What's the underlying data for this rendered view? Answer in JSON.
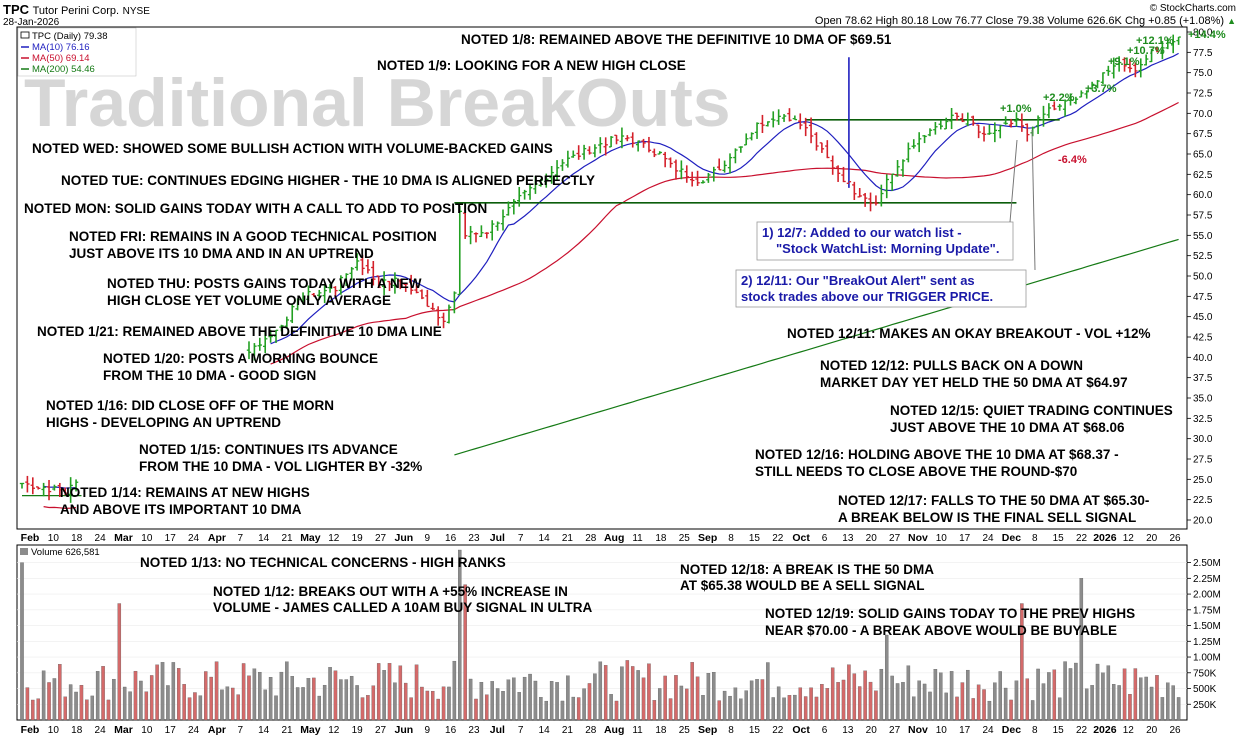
{
  "header": {
    "ticker": "TPC",
    "company": "Tutor Perini Corp.",
    "exchange": "NYSE",
    "date": "28-Jan-2026",
    "watermark": "© StockCharts.com",
    "ohlc_line": "Open 78.62  High 80.18  Low 76.77  Close 79.38  Volume 626.6K  Chg +0.85 (+1.08%)",
    "up_arrow": "▲"
  },
  "legend": {
    "price": "TPC (Daily) 79.38",
    "ma10": "MA(10) 76.16",
    "ma50": "MA(50) 69.14",
    "ma200": "MA(200) 54.46",
    "volume": "Volume 626,581"
  },
  "colors": {
    "up_bar": "#22a022",
    "down_bar": "#d4202a",
    "ma10": "#1f1fbf",
    "ma50": "#c8102e",
    "ma200": "#157a15",
    "vol_up": "#8c8c8c",
    "vol_down": "#d46a6a",
    "annotation": "#1a1aa8"
  },
  "big_title": "Traditional BreakOuts",
  "notes": [
    "NOTED 1/8: REMAINED ABOVE THE DEFINITIVE 10 DMA OF $69.51",
    "NOTED 1/9: LOOKING FOR A NEW HIGH CLOSE",
    "NOTED WED: SHOWED SOME BULLISH ACTION WITH VOLUME-BACKED GAINS",
    "NOTED TUE: CONTINUES EDGING HIGHER - THE 10 DMA IS ALIGNED PERFECTLY",
    "NOTED MON: SOLID GAINS TODAY WITH A CALL TO ADD TO POSITION",
    "NOTED FRI: REMAINS IN A GOOD TECHNICAL POSITION",
    "JUST ABOVE ITS 10 DMA AND IN AN UPTREND",
    "NOTED THU: POSTS GAINS TODAY WITH A NEW",
    "HIGH CLOSE YET VOLUME ONLY AVERAGE",
    "NOTED 1/21: REMAINED ABOVE THE DEFINITIVE 10 DMA LINE",
    "NOTED 1/20: POSTS A MORNING BOUNCE",
    "FROM THE 10 DMA - GOOD SIGN",
    "NOTED 1/16: DID CLOSE OFF OF THE MORN",
    "HIGHS - DEVELOPING AN UPTREND",
    "NOTED 1/15: CONTINUES ITS ADVANCE",
    "FROM THE 10 DMA - VOL LIGHTER BY -32%",
    "NOTED 1/14: REMAINS AT NEW HIGHS",
    "AND ABOVE ITS IMPORTANT 10 DMA",
    "NOTED 12/11: MAKES AN OKAY BREAKOUT - VOL +12%",
    "NOTED 12/12: PULLS BACK ON A DOWN",
    "MARKET DAY YET HELD THE 50 DMA AT $64.97",
    "NOTED 12/15: QUIET TRADING CONTINUES",
    "JUST ABOVE THE 10 DMA AT $68.06",
    "NOTED 12/16: HOLDING ABOVE THE 10 DMA AT $68.37 -",
    "STILL NEEDS TO CLOSE ABOVE THE ROUND-$70",
    "NOTED 12/17: FALLS TO THE 50 DMA AT  $65.30-",
    "A BREAK BELOW IS THE FINAL SELL SIGNAL",
    "NOTED 1/13: NO TECHNICAL CONCERNS - HIGH RANKS",
    "NOTED 1/12: BREAKS OUT WITH A +55% INCREASE IN",
    "VOLUME - JAMES CALLED A 10AM BUY SIGNAL IN ULTRA",
    "NOTED 12/18: A BREAK IS THE 50 DMA",
    "AT $65.38 WOULD BE A SELL SIGNAL",
    "NOTED 12/19: SOLID GAINS TODAY TO THE PREV HIGHS",
    "NEAR $70.00 - A BREAK ABOVE WOULD BE BUYABLE"
  ],
  "annotations": [
    "1) 12/7: Added to our watch list -",
    "\"Stock WatchList: Morning Update\".",
    "2) 12/11: Our \"BreakOut Alert\" sent as",
    "stock trades above our TRIGGER PRICE."
  ],
  "pct_labels": {
    "green": [
      "+1.0%",
      "+2.2%",
      "+3.7%",
      "+9.1%",
      "+10.7%",
      "+12.1%",
      "+14.4%"
    ],
    "red": [
      "-6.4%"
    ]
  },
  "chart_data": {
    "type": "ohlc",
    "price_axis": {
      "range": [
        16.5,
        81
      ],
      "ticks": [
        "80.0",
        "77.5",
        "75.0",
        "72.5",
        "70.0",
        "67.5",
        "65.0",
        "62.5",
        "60.0",
        "57.5",
        "55.0",
        "52.5",
        "50.0",
        "47.5",
        "45.0",
        "42.5",
        "40.0",
        "37.5",
        "35.0",
        "32.5",
        "30.0",
        "27.5",
        "25.0",
        "22.5",
        "20.0"
      ]
    },
    "volume_axis": {
      "range": [
        0,
        2700000
      ],
      "ticks": [
        "2.50M",
        "2.25M",
        "2.00M",
        "1.75M",
        "1.50M",
        "1.25M",
        "1.00M",
        "750K",
        "500K",
        "250K"
      ]
    },
    "x_labels": [
      {
        "t": "Feb",
        "bold": true
      },
      {
        "t": "10"
      },
      {
        "t": "18"
      },
      {
        "t": "24"
      },
      {
        "t": "Mar",
        "bold": true
      },
      {
        "t": "10"
      },
      {
        "t": "17"
      },
      {
        "t": "24"
      },
      {
        "t": "Apr",
        "bold": true
      },
      {
        "t": "7"
      },
      {
        "t": "14"
      },
      {
        "t": "21"
      },
      {
        "t": "May",
        "bold": true
      },
      {
        "t": "12"
      },
      {
        "t": "19"
      },
      {
        "t": "27"
      },
      {
        "t": "Jun",
        "bold": true
      },
      {
        "t": "9"
      },
      {
        "t": "16"
      },
      {
        "t": "23"
      },
      {
        "t": "Jul",
        "bold": true
      },
      {
        "t": "7"
      },
      {
        "t": "14"
      },
      {
        "t": "21"
      },
      {
        "t": "28"
      },
      {
        "t": "Aug",
        "bold": true
      },
      {
        "t": "11"
      },
      {
        "t": "18"
      },
      {
        "t": "25"
      },
      {
        "t": "Sep",
        "bold": true
      },
      {
        "t": "8"
      },
      {
        "t": "15"
      },
      {
        "t": "22"
      },
      {
        "t": "Oct",
        "bold": true
      },
      {
        "t": "6"
      },
      {
        "t": "13"
      },
      {
        "t": "20"
      },
      {
        "t": "27"
      },
      {
        "t": "Nov",
        "bold": true
      },
      {
        "t": "10"
      },
      {
        "t": "17"
      },
      {
        "t": "24"
      },
      {
        "t": "Dec",
        "bold": true
      },
      {
        "t": "8"
      },
      {
        "t": "15"
      },
      {
        "t": "22"
      },
      {
        "t": "2026",
        "bold": true
      },
      {
        "t": "12"
      },
      {
        "t": "20"
      },
      {
        "t": "26"
      }
    ],
    "levels": {
      "resistance": 69.2,
      "support": 59.0
    },
    "price_path": [
      [
        0,
        24.5
      ],
      [
        4,
        24.0
      ],
      [
        8,
        23.5
      ],
      [
        10,
        24.5
      ],
      [
        42,
        41.0
      ],
      [
        46,
        42.5
      ],
      [
        52,
        47.5
      ],
      [
        58,
        48.5
      ],
      [
        62,
        52.0
      ],
      [
        66,
        49.0
      ],
      [
        70,
        49.5
      ],
      [
        76,
        46.0
      ],
      [
        78,
        44.5
      ],
      [
        80,
        47.5
      ],
      [
        81,
        58.0
      ],
      [
        82,
        55.0
      ],
      [
        86,
        55.5
      ],
      [
        92,
        59.5
      ],
      [
        100,
        64.0
      ],
      [
        108,
        66.5
      ],
      [
        112,
        67.0
      ],
      [
        118,
        65.0
      ],
      [
        120,
        63.5
      ],
      [
        126,
        61.5
      ],
      [
        130,
        64.0
      ],
      [
        136,
        68.5
      ],
      [
        140,
        70.0
      ],
      [
        144,
        69.0
      ],
      [
        146,
        67.0
      ],
      [
        150,
        63.5
      ],
      [
        154,
        60.5
      ],
      [
        158,
        59.0
      ],
      [
        160,
        61.5
      ],
      [
        164,
        65.5
      ],
      [
        168,
        67.5
      ],
      [
        172,
        69.5
      ],
      [
        176,
        68.5
      ],
      [
        178,
        67.0
      ],
      [
        180,
        68.0
      ],
      [
        184,
        69.0
      ],
      [
        186,
        67.5
      ],
      [
        190,
        70.5
      ],
      [
        196,
        72.5
      ],
      [
        202,
        76.0
      ],
      [
        206,
        75.5
      ],
      [
        210,
        78.0
      ],
      [
        214,
        79.38
      ]
    ],
    "spikes": [
      {
        "i": 153,
        "high": 76.9
      }
    ],
    "volume_spikes": [
      {
        "i": 0,
        "v": 2500000
      },
      {
        "i": 18,
        "v": 1850000
      },
      {
        "i": 81,
        "v": 2700000
      },
      {
        "i": 82,
        "v": 2150000
      },
      {
        "i": 160,
        "v": 1350000
      },
      {
        "i": 185,
        "v": 1850000
      },
      {
        "i": 196,
        "v": 2250000
      }
    ]
  }
}
